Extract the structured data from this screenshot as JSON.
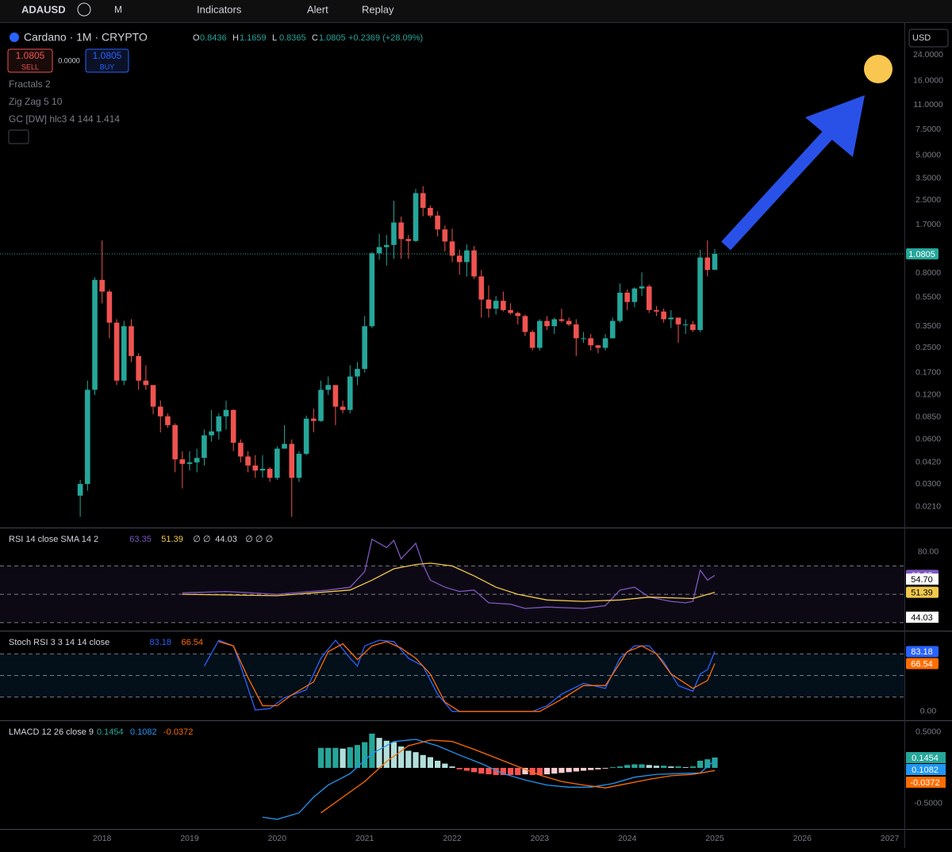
{
  "toolbar": {
    "symbol": "ADAUSD",
    "interval": "M",
    "indicators": "Indicators",
    "alert": "Alert",
    "replay": "Replay"
  },
  "legend": {
    "title": "Cardano · 1M · CRYPTO",
    "ohlc_letters": [
      "O",
      "H",
      "L",
      "C"
    ],
    "change": "+0.2369 (+28.09%)",
    "sell_price": "1.0805",
    "sell": "SELL",
    "spread": "0.0000",
    "buy_price": "1.0805",
    "buy": "BUY",
    "studies": [
      "Fractals 2",
      "Zig Zag 5 10",
      "GC [DW] hlc3 4 144 1.414"
    ],
    "currency": "USD"
  },
  "chart_data": [
    {
      "type": "candlestick",
      "up_color": "#26a69a",
      "down_color": "#ef5350",
      "log_scale": true,
      "ylim": [
        0.0156,
        37.9
      ],
      "xlim": [
        -11,
        113
      ],
      "yticks": [
        {
          "value": 24,
          "label": "24.0000"
        },
        {
          "value": 16,
          "label": "16.0000"
        },
        {
          "value": 11,
          "label": "11.0000"
        },
        {
          "value": 7.5,
          "label": "7.5000"
        },
        {
          "value": 5,
          "label": "5.0000"
        },
        {
          "value": 3.5,
          "label": "3.5000"
        },
        {
          "value": 2.5,
          "label": "2.5000"
        },
        {
          "value": 1.7,
          "label": "1.7000"
        },
        {
          "value": 0.8,
          "label": "0.8000"
        },
        {
          "value": 0.55,
          "label": "0.5500"
        },
        {
          "value": 0.35,
          "label": "0.3500"
        },
        {
          "value": 0.25,
          "label": "0.2500"
        },
        {
          "value": 0.17,
          "label": "0.1700"
        },
        {
          "value": 0.12,
          "label": "0.1200"
        },
        {
          "value": 0.085,
          "label": "0.0850"
        },
        {
          "value": 0.06,
          "label": "0.0600"
        },
        {
          "value": 0.042,
          "label": "0.0420"
        },
        {
          "value": 0.03,
          "label": "0.0300"
        },
        {
          "value": 0.021,
          "label": "0.0210"
        }
      ],
      "xticks": [
        {
          "value": 3,
          "label": "2018"
        },
        {
          "value": 15,
          "label": "2019"
        },
        {
          "value": 27,
          "label": "2020"
        },
        {
          "value": 39,
          "label": "2021"
        },
        {
          "value": 51,
          "label": "2022"
        },
        {
          "value": 63,
          "label": "2023"
        },
        {
          "value": 75,
          "label": "2024"
        },
        {
          "value": 87,
          "label": "2025"
        },
        {
          "value": 99,
          "label": "2026"
        },
        {
          "value": 111,
          "label": "2027"
        }
      ],
      "open": [
        0.025,
        0.03,
        0.13,
        0.72,
        0.6,
        0.37,
        0.15,
        0.35,
        0.22,
        0.15,
        0.14,
        0.1,
        0.086,
        0.075,
        0.044,
        0.041,
        0.042,
        0.045,
        0.064,
        0.068,
        0.086,
        0.095,
        0.057,
        0.046,
        0.04,
        0.037,
        0.038,
        0.033,
        0.052,
        0.056,
        0.033,
        0.048,
        0.083,
        0.08,
        0.13,
        0.14,
        0.1,
        0.095,
        0.16,
        0.18,
        0.35,
        1.09,
        1.2,
        1.24,
        1.76,
        1.36,
        1.32,
        2.78,
        2.21,
        1.96,
        1.58,
        1.31,
        1.05,
        0.95,
        1.14,
        0.76,
        0.53,
        0.46,
        0.52,
        0.45,
        0.43,
        0.41,
        0.32,
        0.25,
        0.38,
        0.35,
        0.39,
        0.38,
        0.36,
        0.29,
        0.29,
        0.26,
        0.25,
        0.29,
        0.38,
        0.59,
        0.51,
        0.63,
        0.65,
        0.45,
        0.44,
        0.39,
        0.4,
        0.36,
        0.36,
        0.33,
        1.02,
        0.8436
      ],
      "high": [
        0.032,
        0.15,
        0.75,
        1.33,
        0.62,
        0.39,
        0.38,
        0.39,
        0.23,
        0.19,
        0.14,
        0.11,
        0.09,
        0.077,
        0.05,
        0.05,
        0.052,
        0.07,
        0.095,
        0.09,
        0.11,
        0.096,
        0.06,
        0.05,
        0.047,
        0.047,
        0.039,
        0.054,
        0.075,
        0.06,
        0.05,
        0.087,
        0.097,
        0.15,
        0.16,
        0.14,
        0.11,
        0.19,
        0.2,
        0.41,
        1.11,
        1.48,
        1.45,
        2.47,
        1.93,
        1.45,
        2.97,
        3.1,
        2.3,
        2.1,
        1.68,
        1.6,
        1.15,
        1.25,
        1.22,
        0.84,
        0.66,
        0.56,
        0.6,
        0.5,
        0.44,
        0.42,
        0.33,
        0.39,
        0.41,
        0.4,
        0.46,
        0.4,
        0.39,
        0.32,
        0.31,
        0.26,
        0.31,
        0.4,
        0.68,
        0.62,
        0.64,
        0.81,
        0.67,
        0.48,
        0.46,
        0.45,
        0.4,
        0.39,
        0.38,
        1.15,
        1.33,
        1.1659
      ],
      "low": [
        0.018,
        0.027,
        0.12,
        0.5,
        0.29,
        0.14,
        0.14,
        0.2,
        0.13,
        0.13,
        0.089,
        0.067,
        0.072,
        0.036,
        0.028,
        0.037,
        0.036,
        0.04,
        0.058,
        0.06,
        0.07,
        0.05,
        0.042,
        0.036,
        0.033,
        0.033,
        0.031,
        0.032,
        0.052,
        0.018,
        0.031,
        0.047,
        0.067,
        0.079,
        0.12,
        0.075,
        0.09,
        0.09,
        0.14,
        0.17,
        0.34,
        0.99,
        0.9,
        1.0,
        1.0,
        1.0,
        1.3,
        1.94,
        1.9,
        1.42,
        1.12,
        0.95,
        0.78,
        0.76,
        0.73,
        0.4,
        0.4,
        0.42,
        0.44,
        0.42,
        0.36,
        0.3,
        0.24,
        0.24,
        0.33,
        0.31,
        0.37,
        0.35,
        0.22,
        0.27,
        0.24,
        0.23,
        0.24,
        0.29,
        0.37,
        0.45,
        0.47,
        0.56,
        0.43,
        0.41,
        0.37,
        0.34,
        0.27,
        0.31,
        0.32,
        0.32,
        0.76,
        0.8365
      ],
      "close": [
        0.03,
        0.13,
        0.72,
        0.6,
        0.37,
        0.15,
        0.35,
        0.22,
        0.15,
        0.14,
        0.1,
        0.086,
        0.075,
        0.044,
        0.041,
        0.042,
        0.045,
        0.064,
        0.068,
        0.086,
        0.095,
        0.057,
        0.046,
        0.04,
        0.037,
        0.038,
        0.033,
        0.052,
        0.056,
        0.033,
        0.048,
        0.083,
        0.08,
        0.13,
        0.14,
        0.1,
        0.095,
        0.16,
        0.18,
        0.35,
        1.09,
        1.2,
        1.24,
        1.76,
        1.36,
        1.32,
        2.78,
        2.21,
        1.96,
        1.58,
        1.31,
        1.05,
        0.95,
        1.14,
        0.76,
        0.53,
        0.46,
        0.52,
        0.45,
        0.43,
        0.41,
        0.32,
        0.25,
        0.38,
        0.35,
        0.39,
        0.38,
        0.36,
        0.29,
        0.29,
        0.26,
        0.25,
        0.29,
        0.38,
        0.59,
        0.51,
        0.63,
        0.65,
        0.45,
        0.44,
        0.39,
        0.4,
        0.36,
        0.36,
        0.33,
        1.02,
        0.84,
        1.0805
      ]
    },
    {
      "type": "line",
      "title": "RSI 14 close SMA 14 2",
      "ylim": [
        26,
        96
      ],
      "yticks": [
        {
          "value": 80,
          "label": "80.00"
        }
      ],
      "bands": [
        30,
        50,
        70
      ],
      "band_color": "#7e57c2",
      "extra_values": [
        "54.70",
        "44.03"
      ],
      "placeholders": [
        "∅ ∅",
        "∅ ∅ ∅"
      ],
      "series": [
        {
          "color": "#7e57c2",
          "x": [
            14,
            20,
            27,
            34,
            37,
            39,
            40,
            42,
            43,
            44,
            46,
            47,
            48,
            50,
            52,
            54,
            56,
            59,
            61,
            64,
            69,
            72,
            74,
            76,
            78,
            81,
            83,
            84,
            85,
            86,
            87
          ],
          "values": [
            51,
            52,
            50,
            53,
            55,
            66,
            88.9,
            83,
            88,
            75,
            86,
            71,
            60,
            55,
            52,
            53,
            44,
            43,
            40,
            41,
            40,
            42,
            53,
            55,
            48,
            45,
            44,
            45,
            67,
            60,
            63.35
          ]
        },
        {
          "color": "#f2c94c",
          "x": [
            14,
            27,
            37,
            40,
            43,
            46,
            48,
            51,
            54,
            57,
            60,
            64,
            69,
            74,
            78,
            84,
            87
          ],
          "values": [
            50,
            49,
            53,
            60,
            68,
            71,
            72,
            70,
            63,
            55,
            50,
            46,
            45,
            46,
            48,
            47,
            51.39
          ]
        }
      ]
    },
    {
      "type": "line",
      "title": "Stoch RSI 3 3 14 14 close",
      "ylim": [
        -9,
        110
      ],
      "yticks": [
        {
          "value": 0,
          "label": "0.00"
        }
      ],
      "bands": [
        20,
        50,
        80
      ],
      "band_color": "#2196f3",
      "series": [
        {
          "color": "#2962ff",
          "x": [
            17,
            19,
            21,
            22,
            24,
            26,
            28,
            31,
            33,
            35,
            37,
            38,
            39,
            41,
            43,
            45,
            47,
            49,
            51,
            54,
            58,
            62,
            64,
            66,
            69,
            72,
            74,
            76,
            78,
            80,
            82,
            84,
            85,
            86,
            87
          ],
          "values": [
            63,
            99,
            91,
            63,
            2,
            4,
            19,
            30,
            74,
            99,
            74,
            63,
            91,
            99,
            97,
            74,
            63,
            24,
            0,
            0,
            0,
            0,
            8,
            24,
            39,
            32,
            74,
            91,
            91,
            69,
            36,
            28,
            52,
            58,
            83.18
          ]
        },
        {
          "color": "#ff6d00",
          "x": [
            19,
            21,
            23,
            25,
            27,
            29,
            32,
            34,
            36,
            38,
            40,
            42,
            44,
            46,
            48,
            50,
            52,
            58,
            63,
            66,
            69,
            72,
            75,
            77,
            79,
            81,
            84,
            86,
            87
          ],
          "values": [
            97,
            91,
            47,
            8,
            8,
            23,
            41,
            83,
            94,
            72,
            91,
            97,
            88,
            74,
            52,
            13,
            0,
            0,
            0,
            17,
            36,
            36,
            83,
            91,
            80,
            52,
            32,
            43,
            66.54
          ]
        }
      ]
    },
    {
      "type": "macd",
      "title": "LMACD 12 26 close 9",
      "ylim": [
        -0.856,
        0.644
      ],
      "yticks": [
        {
          "value": 0.5,
          "label": "0.5000"
        },
        {
          "value": -0.5,
          "label": "-0.5000"
        }
      ],
      "histogram": {
        "color": "#26a69a",
        "x": [
          33,
          34,
          35,
          36,
          37,
          38,
          39,
          40,
          41,
          42,
          43,
          44,
          45,
          46,
          47,
          48,
          49,
          50,
          51,
          52,
          53,
          54,
          55,
          56,
          57,
          58,
          59,
          60,
          61,
          62,
          63,
          64,
          65,
          66,
          67,
          68,
          69,
          70,
          71,
          72,
          73,
          74,
          75,
          76,
          77,
          78,
          79,
          80,
          81,
          82,
          83,
          84,
          85,
          86,
          87
        ],
        "values": [
          0.28,
          0.28,
          0.28,
          0.27,
          0.29,
          0.32,
          0.36,
          0.48,
          0.42,
          0.38,
          0.36,
          0.3,
          0.24,
          0.22,
          0.18,
          0.15,
          0.1,
          0.06,
          0.02,
          -0.02,
          -0.04,
          -0.06,
          -0.08,
          -0.09,
          -0.1,
          -0.1,
          -0.1,
          -0.1,
          -0.09,
          -0.1,
          -0.1,
          -0.09,
          -0.08,
          -0.07,
          -0.06,
          -0.05,
          -0.04,
          -0.03,
          -0.02,
          -0.01,
          0.01,
          0.02,
          0.04,
          0.05,
          0.05,
          0.04,
          0.03,
          0.03,
          0.02,
          0.02,
          0.01,
          0.02,
          0.1,
          0.12,
          0.1454
        ]
      },
      "series": [
        {
          "color": "#2196f3",
          "x": [
            25,
            27,
            30,
            32,
            34,
            37,
            40,
            43,
            46,
            49,
            52,
            55,
            58,
            61,
            64,
            67,
            70,
            73,
            76,
            79,
            82,
            85,
            87
          ],
          "values": [
            -0.69,
            -0.72,
            -0.63,
            -0.41,
            -0.24,
            -0.08,
            0.2,
            0.37,
            0.4,
            0.31,
            0.18,
            0.06,
            -0.08,
            -0.17,
            -0.24,
            -0.27,
            -0.27,
            -0.22,
            -0.13,
            -0.09,
            -0.08,
            -0.07,
            0.1082
          ]
        },
        {
          "color": "#ff6d00",
          "x": [
            33,
            36,
            39,
            42,
            45,
            48,
            51,
            54,
            57,
            60,
            63,
            66,
            69,
            72,
            75,
            78,
            81,
            84,
            87
          ],
          "values": [
            -0.63,
            -0.41,
            -0.19,
            0.09,
            0.31,
            0.39,
            0.37,
            0.26,
            0.14,
            0.02,
            -0.1,
            -0.19,
            -0.24,
            -0.28,
            -0.22,
            -0.16,
            -0.11,
            -0.09,
            -0.0372
          ]
        }
      ]
    }
  ]
}
